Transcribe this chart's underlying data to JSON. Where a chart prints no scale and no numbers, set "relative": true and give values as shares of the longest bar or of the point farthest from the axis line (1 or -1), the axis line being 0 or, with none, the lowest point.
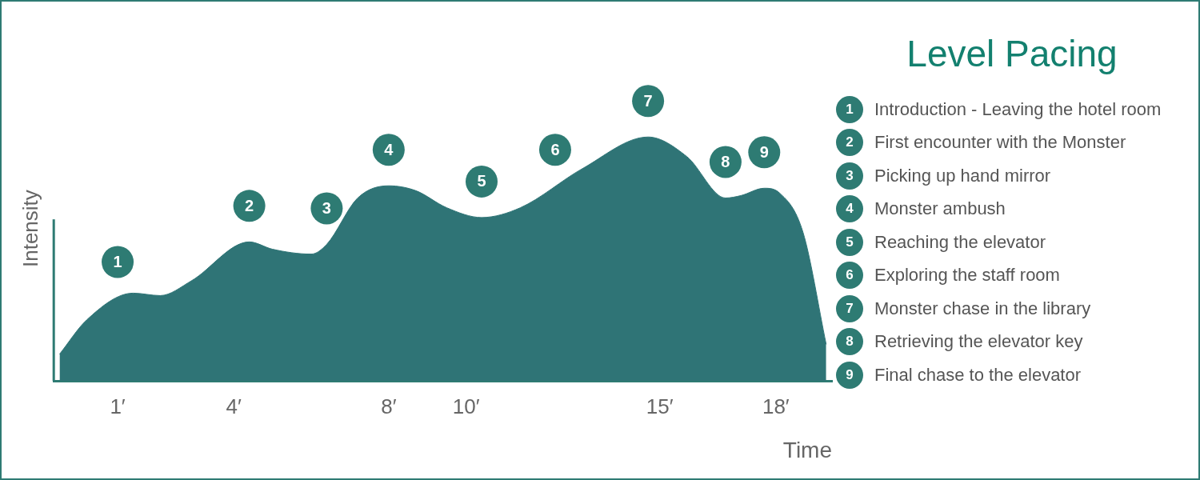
{
  "chart_data": {
    "type": "area",
    "title": "Level Pacing",
    "xlabel": "Time",
    "ylabel": "Intensity",
    "relative": true,
    "color": "#2f7476",
    "x": [
      -0.5,
      0.2,
      1.4,
      2.1,
      2.9,
      4.4,
      5.0,
      6.0,
      6.4,
      7.2,
      8.0,
      8.7,
      9.5,
      10.4,
      11.4,
      13.0,
      14.7,
      15.7,
      16.7,
      17.1,
      17.7,
      18.1,
      18.7,
      19.3
    ],
    "values": [
      0.11,
      0.25,
      0.36,
      0.35,
      0.41,
      0.57,
      0.54,
      0.52,
      0.56,
      0.75,
      0.8,
      0.78,
      0.71,
      0.67,
      0.71,
      0.87,
      1,
      0.92,
      0.75,
      0.76,
      0.79,
      0.77,
      0.61,
      0.15
    ],
    "xlim": [
      -0.65,
      19.45
    ],
    "xticks": [
      {
        "value": 1,
        "label": "1′"
      },
      {
        "value": 4,
        "label": "4′"
      },
      {
        "value": 8,
        "label": "8′"
      },
      {
        "value": 10,
        "label": "10′"
      },
      {
        "value": 15,
        "label": "15′"
      },
      {
        "value": 18,
        "label": "18′"
      }
    ],
    "annotations": [
      {
        "text": "1",
        "x": 1,
        "y": 0.34
      },
      {
        "text": "2",
        "x": 4.4,
        "y": 0.57
      },
      {
        "text": "3",
        "x": 6.4,
        "y": 0.56
      },
      {
        "text": "4",
        "x": 8,
        "y": 0.8
      },
      {
        "text": "5",
        "x": 10.4,
        "y": 0.67
      },
      {
        "text": "6",
        "x": 12.3,
        "y": 0.8
      },
      {
        "text": "7",
        "x": 14.7,
        "y": 1
      },
      {
        "text": "8",
        "x": 16.7,
        "y": 0.75
      },
      {
        "text": "9",
        "x": 17.7,
        "y": 0.79
      },
      "Introduction - Leaving the hotel room",
      "First encounter with the Monster",
      "Picking up hand mirror",
      "Monster ambush",
      "Reaching the elevator",
      "Exploring the staff room",
      "Monster chase in the library",
      "Retrieving the elevator key",
      "Final chase to the elevator"
    ],
    "legend": false
  }
}
